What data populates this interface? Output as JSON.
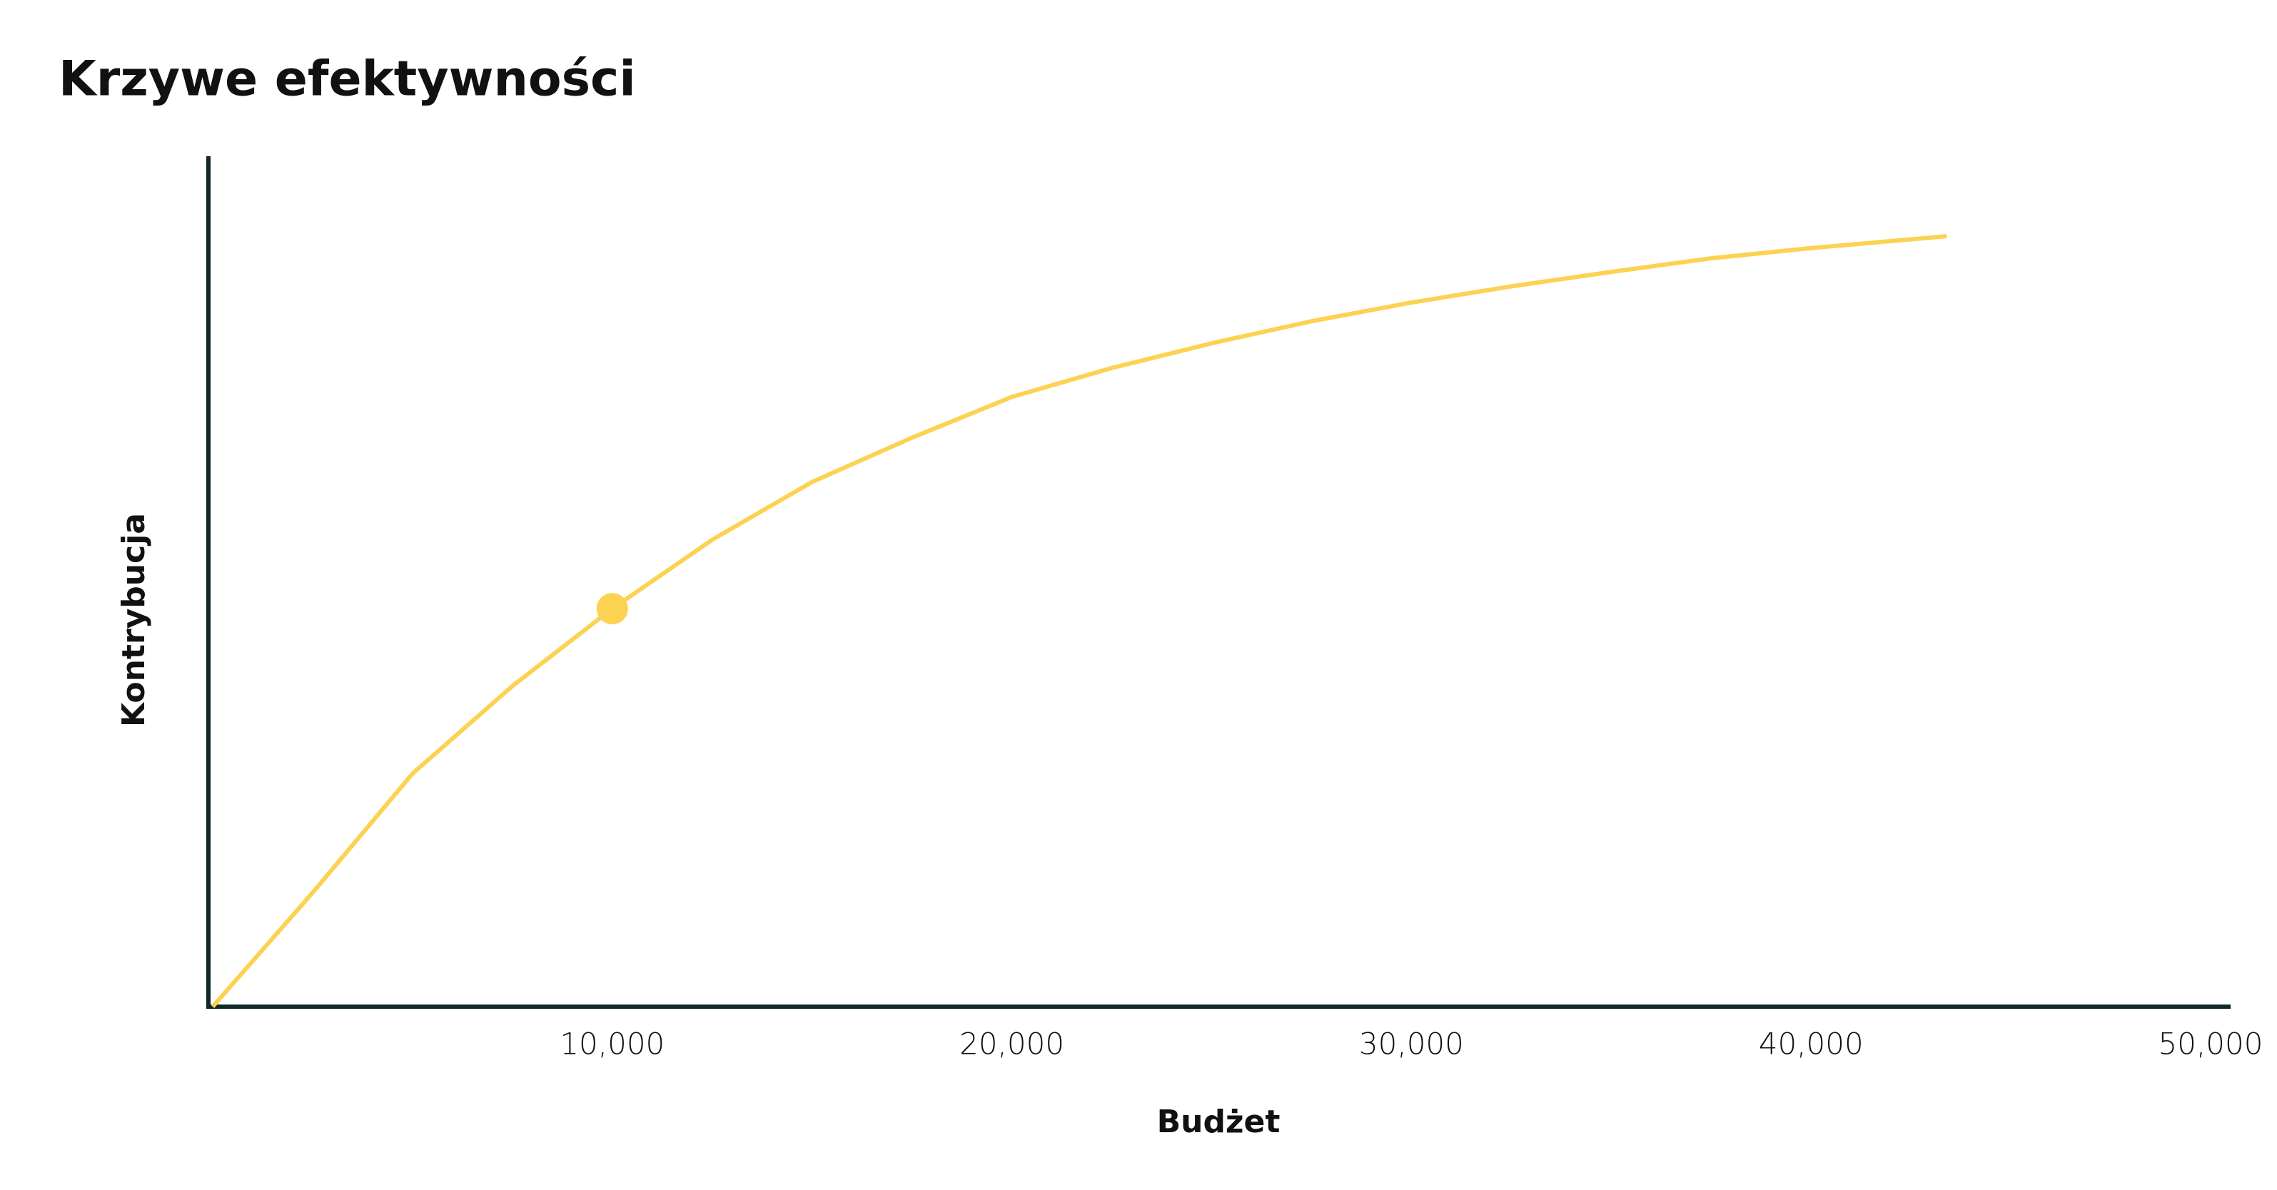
{
  "chart_data": {
    "type": "line",
    "title": "Krzywe efektywności",
    "x_label": "Budżet",
    "y_label": "Kontrybucja",
    "x": [
      0,
      2500,
      5000,
      7500,
      10000,
      12500,
      15000,
      17500,
      20000,
      22500,
      25000,
      27500,
      30000,
      32500,
      35000,
      37500,
      40000,
      43400
    ],
    "series": [
      {
        "color": "#fcd252",
        "values": [
          0,
          13.4,
          27.4,
          37.7,
          46.8,
          54.9,
          61.7,
          66.9,
          71.7,
          75.1,
          78.0,
          80.6,
          82.8,
          84.7,
          86.4,
          88.0,
          89.2,
          90.6
        ]
      }
    ],
    "highlight": {
      "x": 10000,
      "y": 46.8
    },
    "xlim": [
      0,
      50500
    ],
    "ylim": [
      0,
      100
    ],
    "xticks": [
      {
        "value": 10000,
        "label": "10,000"
      },
      {
        "value": 20000,
        "label": "20,000"
      },
      {
        "value": 30000,
        "label": "30,000"
      },
      {
        "value": 40000,
        "label": "40,000"
      },
      {
        "value": 50000,
        "label": "50,000"
      }
    ]
  }
}
